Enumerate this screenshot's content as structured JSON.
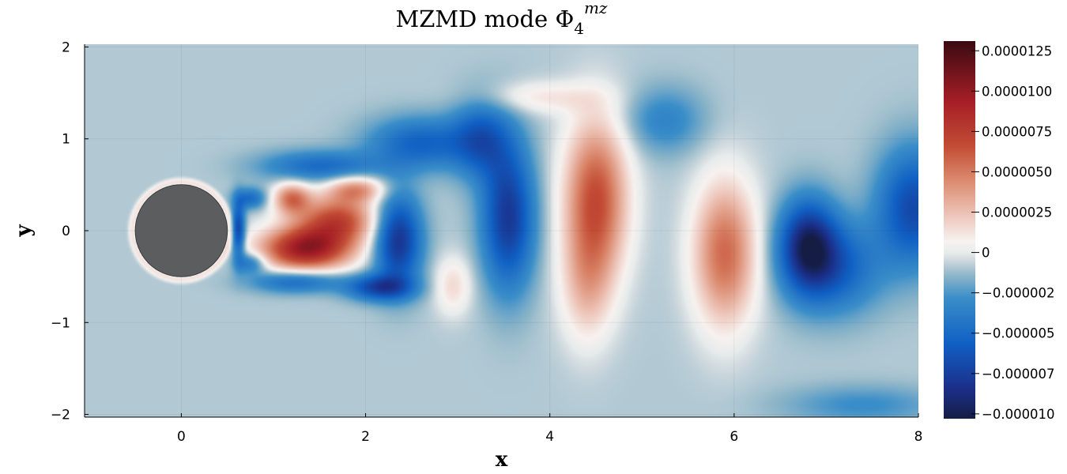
{
  "chart_data": {
    "type": "heatmap",
    "title": {
      "prefix": "MZMD mode ",
      "symbol": "Φ",
      "subscript": "4",
      "superscript": "mz"
    },
    "xlabel": "x",
    "ylabel": "y",
    "xlim": [
      -1.05,
      8
    ],
    "ylim": [
      -2.03,
      2.03
    ],
    "x_ticks": [
      0,
      2,
      4,
      6,
      8
    ],
    "x_tick_labels": [
      "0",
      "2",
      "4",
      "6",
      "8"
    ],
    "y_ticks": [
      -2,
      -1,
      0,
      1,
      2
    ],
    "y_tick_labels": [
      "−2",
      "−1",
      "0",
      "1",
      "2"
    ],
    "grid": true,
    "obstacle": {
      "shape": "circle",
      "center": [
        0,
        0
      ],
      "radius": 0.5,
      "color": "#5b5d5f"
    },
    "colorbar": {
      "min": -1.03e-05,
      "max": 1.31e-05,
      "ticks": [
        1.25e-05,
        1e-05,
        7.5e-06,
        5e-06,
        2.5e-06,
        0,
        -2.5e-06,
        -5e-06,
        -7.5e-06,
        -1e-05
      ],
      "tick_labels": [
        "0.0000125",
        "0.0000100",
        "0.0000075",
        "0.0000050",
        "0.0000025",
        "0",
        "−0.000002",
        "−0.000005",
        "−0.000007",
        "−0.000010"
      ],
      "colormap": [
        [
          0.0,
          "#151d44"
        ],
        [
          0.08,
          "#1b2f8a"
        ],
        [
          0.2,
          "#1060c4"
        ],
        [
          0.32,
          "#3a8ec8"
        ],
        [
          0.38,
          "#8fb6c8"
        ],
        [
          0.42,
          "#cfd9de"
        ],
        [
          0.44,
          "#e8ecec"
        ],
        [
          0.47,
          "#f7f2f0"
        ],
        [
          0.54,
          "#edc4b8"
        ],
        [
          0.64,
          "#d98468"
        ],
        [
          0.72,
          "#c34d35"
        ],
        [
          0.84,
          "#a51e26"
        ],
        [
          1.0,
          "#3b0a12"
        ]
      ]
    },
    "field_blobs": [
      {
        "x": 0.62,
        "y": 0.0,
        "sx": 0.05,
        "sy": 0.22,
        "a": -6.5e-06
      },
      {
        "x": 0.75,
        "y": 0.35,
        "sx": 0.12,
        "sy": 0.08,
        "a": -4e-06
      },
      {
        "x": 0.75,
        "y": -0.35,
        "sx": 0.12,
        "sy": 0.08,
        "a": -4e-06
      },
      {
        "x": 1.35,
        "y": -0.2,
        "sx": 0.35,
        "sy": 0.17,
        "a": 1.05e-05
      },
      {
        "x": 1.7,
        "y": 0.12,
        "sx": 0.3,
        "sy": 0.18,
        "a": 7.5e-06
      },
      {
        "x": 1.2,
        "y": 0.35,
        "sx": 0.14,
        "sy": 0.12,
        "a": 6e-06
      },
      {
        "x": 1.9,
        "y": 0.45,
        "sx": 0.22,
        "sy": 0.1,
        "a": 5e-06
      },
      {
        "x": 1.25,
        "y": -0.55,
        "sx": 0.35,
        "sy": 0.09,
        "a": -4.5e-06
      },
      {
        "x": 2.35,
        "y": -0.1,
        "sx": 0.18,
        "sy": 0.35,
        "a": -7.5e-06
      },
      {
        "x": 2.15,
        "y": -0.62,
        "sx": 0.25,
        "sy": 0.1,
        "a": -6e-06
      },
      {
        "x": 1.5,
        "y": 0.7,
        "sx": 0.45,
        "sy": 0.12,
        "a": -4e-06
      },
      {
        "x": 2.6,
        "y": 0.95,
        "sx": 0.4,
        "sy": 0.2,
        "a": -4.5e-06
      },
      {
        "x": 2.95,
        "y": -0.6,
        "sx": 0.14,
        "sy": 0.22,
        "a": 2.5e-06
      },
      {
        "x": 3.55,
        "y": 0.15,
        "sx": 0.2,
        "sy": 0.55,
        "a": -7e-06
      },
      {
        "x": 3.25,
        "y": 1.0,
        "sx": 0.22,
        "sy": 0.3,
        "a": -4.5e-06
      },
      {
        "x": 3.9,
        "y": 1.45,
        "sx": 0.45,
        "sy": 0.12,
        "a": 2e-06
      },
      {
        "x": 4.5,
        "y": 0.35,
        "sx": 0.24,
        "sy": 0.6,
        "a": 7.5e-06
      },
      {
        "x": 4.4,
        "y": -0.6,
        "sx": 0.2,
        "sy": 0.45,
        "a": 3e-06
      },
      {
        "x": 5.25,
        "y": 1.2,
        "sx": 0.3,
        "sy": 0.25,
        "a": -2.5e-06
      },
      {
        "x": 5.9,
        "y": -0.25,
        "sx": 0.24,
        "sy": 0.55,
        "a": 6.5e-06
      },
      {
        "x": 6.8,
        "y": -0.15,
        "sx": 0.22,
        "sy": 0.35,
        "a": -7.5e-06
      },
      {
        "x": 7.1,
        "y": -0.4,
        "sx": 0.35,
        "sy": 0.35,
        "a": -4.5e-06
      },
      {
        "x": 7.95,
        "y": 0.25,
        "sx": 0.28,
        "sy": 0.45,
        "a": -6e-06
      },
      {
        "x": 7.4,
        "y": -1.9,
        "sx": 0.6,
        "sy": 0.15,
        "a": -2e-06
      }
    ]
  }
}
